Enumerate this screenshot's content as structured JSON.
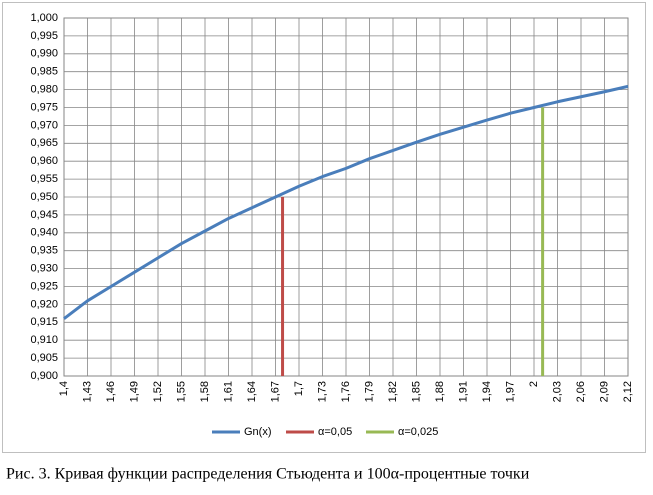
{
  "chart_data": {
    "type": "line",
    "categories": [
      "1,4",
      "1,43",
      "1,46",
      "1,49",
      "1,52",
      "1,55",
      "1,58",
      "1,61",
      "1,64",
      "1,67",
      "1,7",
      "1,73",
      "1,76",
      "1,79",
      "1,82",
      "1,85",
      "1,88",
      "1,91",
      "1,94",
      "1,97",
      "2",
      "2,03",
      "2,06",
      "2,09",
      "2,12"
    ],
    "xlim": [
      1.4,
      2.12
    ],
    "series": [
      {
        "name": "Gn(x)",
        "color": "#4a7ebb",
        "values": [
          0.916,
          0.921,
          0.925,
          0.929,
          0.933,
          0.937,
          0.9405,
          0.944,
          0.947,
          0.95,
          0.953,
          0.9557,
          0.958,
          0.9607,
          0.963,
          0.9653,
          0.9675,
          0.9695,
          0.9715,
          0.9734,
          0.975,
          0.9766,
          0.978,
          0.9794,
          0.9809
        ]
      },
      {
        "name": "α=0,05",
        "color": "#be4b48",
        "x": [
          1.679,
          1.679
        ],
        "values": [
          0.9,
          0.95
        ]
      },
      {
        "name": "α=0,025",
        "color": "#98b954",
        "x": [
          2.011,
          2.011
        ],
        "values": [
          0.9,
          0.975
        ]
      }
    ],
    "ylim": [
      0.9,
      1.0
    ],
    "yticks": [
      {
        "value": 0.9,
        "label": "0,900"
      },
      {
        "value": 0.905,
        "label": "0,905"
      },
      {
        "value": 0.91,
        "label": "0,910"
      },
      {
        "value": 0.915,
        "label": "0,915"
      },
      {
        "value": 0.92,
        "label": "0,920"
      },
      {
        "value": 0.925,
        "label": "0,925"
      },
      {
        "value": 0.93,
        "label": "0,930"
      },
      {
        "value": 0.935,
        "label": "0,935"
      },
      {
        "value": 0.94,
        "label": "0,940"
      },
      {
        "value": 0.945,
        "label": "0,945"
      },
      {
        "value": 0.95,
        "label": "0,950"
      },
      {
        "value": 0.955,
        "label": "0,955"
      },
      {
        "value": 0.96,
        "label": "0,960"
      },
      {
        "value": 0.965,
        "label": "0,965"
      },
      {
        "value": 0.97,
        "label": "0,970"
      },
      {
        "value": 0.975,
        "label": "0,975"
      },
      {
        "value": 0.98,
        "label": "0,980"
      },
      {
        "value": 0.985,
        "label": "0,985"
      },
      {
        "value": 0.99,
        "label": "0,990"
      },
      {
        "value": 0.995,
        "label": "0,995"
      },
      {
        "value": 1.0,
        "label": "1,000"
      }
    ],
    "grid": true,
    "legend": "bottom",
    "caption": "Рис. 3. Кривая функции распределения Стьюдента и 100α-процентные точки"
  }
}
